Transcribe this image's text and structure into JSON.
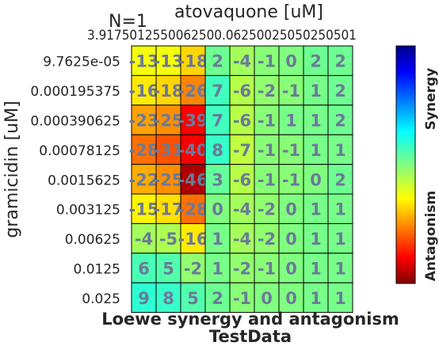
{
  "chart_data": {
    "type": "heatmap",
    "title": "N=1",
    "xlabel": "atovaquone [uM]",
    "ylabel": "gramicidin [uM]",
    "footer_title": "Loewe synergy and antagonism",
    "footer_subtitle": "TestData",
    "x_tick_labels": [
      "3.91",
      "7.81",
      "15.6",
      "31.3",
      "62.5",
      "125",
      "250",
      "500",
      "1000"
    ],
    "x_tick_display": "3.9175012550062500.06250025050250501",
    "y_tick_labels": [
      "9.7625e-05",
      "0.000195375",
      "0.000390625",
      "0.00078125",
      "0.0015625",
      "0.003125",
      "0.00625",
      "0.0125",
      "0.025"
    ],
    "values": [
      [
        -13,
        -13,
        -18,
        2,
        -4,
        -1,
        0,
        2,
        2
      ],
      [
        -16,
        -18,
        -26,
        7,
        -6,
        -2,
        -1,
        1,
        2
      ],
      [
        -23,
        -25,
        -39,
        7,
        -6,
        -1,
        1,
        1,
        2
      ],
      [
        -28,
        -31,
        -40,
        8,
        -7,
        -1,
        -1,
        1,
        1
      ],
      [
        -22,
        -25,
        -46,
        3,
        -6,
        -1,
        -1,
        0,
        2
      ],
      [
        -15,
        -17,
        -28,
        0,
        -4,
        -2,
        0,
        1,
        1
      ],
      [
        -4,
        -5,
        -16,
        1,
        -4,
        -2,
        0,
        1,
        1
      ],
      [
        6,
        5,
        -2,
        1,
        -2,
        -1,
        0,
        1,
        1
      ],
      [
        9,
        8,
        5,
        2,
        -1,
        0,
        0,
        1,
        1
      ]
    ],
    "colorbar": {
      "label_top": "Synergy",
      "label_bottom": "Antagonism",
      "vmin": -50,
      "vmax": 50,
      "colormap": "jet"
    }
  }
}
